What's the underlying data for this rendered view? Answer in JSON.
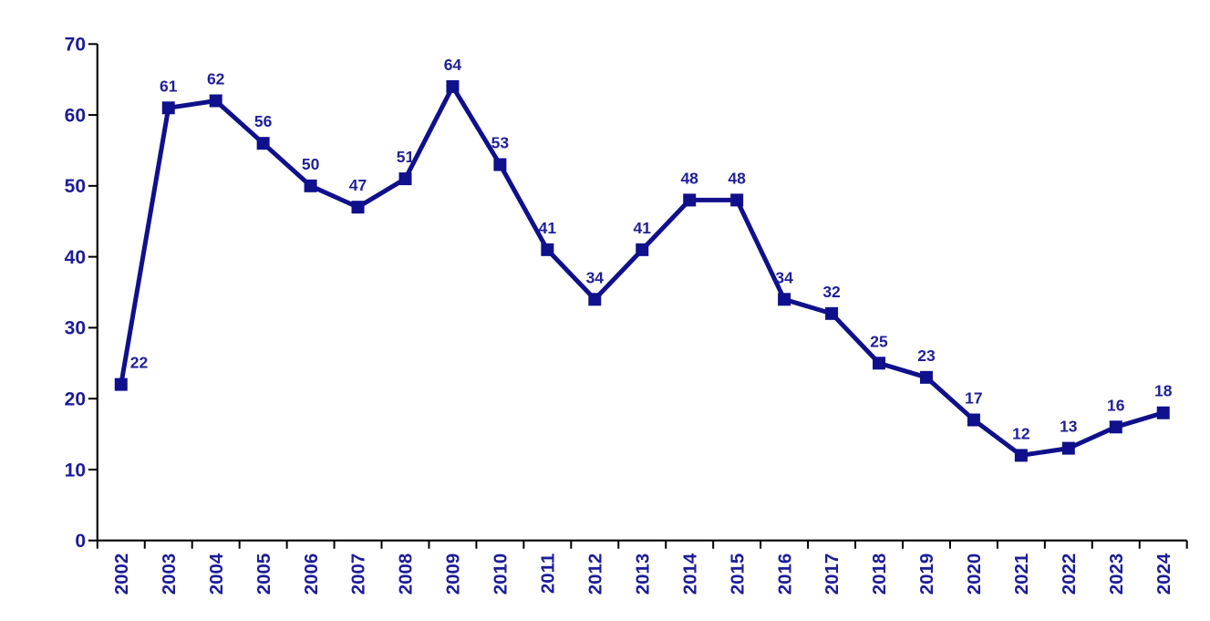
{
  "chart_data": {
    "type": "line",
    "categories": [
      "2002",
      "2003",
      "2004",
      "2005",
      "2006",
      "2007",
      "2008",
      "2009",
      "2010",
      "2011",
      "2012",
      "2013",
      "2014",
      "2015",
      "2016",
      "2017",
      "2018",
      "2019",
      "2020",
      "2021",
      "2022",
      "2023",
      "2024"
    ],
    "values": [
      22,
      61,
      62,
      56,
      50,
      47,
      51,
      64,
      53,
      41,
      34,
      41,
      48,
      48,
      34,
      32,
      25,
      23,
      17,
      12,
      13,
      16,
      18
    ],
    "data_labels": [
      "22",
      "61",
      "62",
      "56",
      "50",
      "47",
      "51",
      "64",
      "53",
      "41",
      "34",
      "41",
      "48",
      "48",
      "34",
      "32",
      "25",
      "23",
      "17",
      "12",
      "13",
      "16",
      "18"
    ],
    "title": "",
    "xlabel": "",
    "ylabel": "",
    "ylim": [
      0,
      70
    ],
    "y_ticks": [
      0,
      10,
      20,
      30,
      40,
      50,
      60,
      70
    ],
    "grid": "off",
    "legend": "none",
    "marker": "square",
    "line_width": 5,
    "colors": {
      "series": "#10108C",
      "data_label_text": "#1F1F99",
      "tick_label_text": "#1C1C99",
      "axis": "#000000",
      "background": "#FFFFFF"
    }
  }
}
